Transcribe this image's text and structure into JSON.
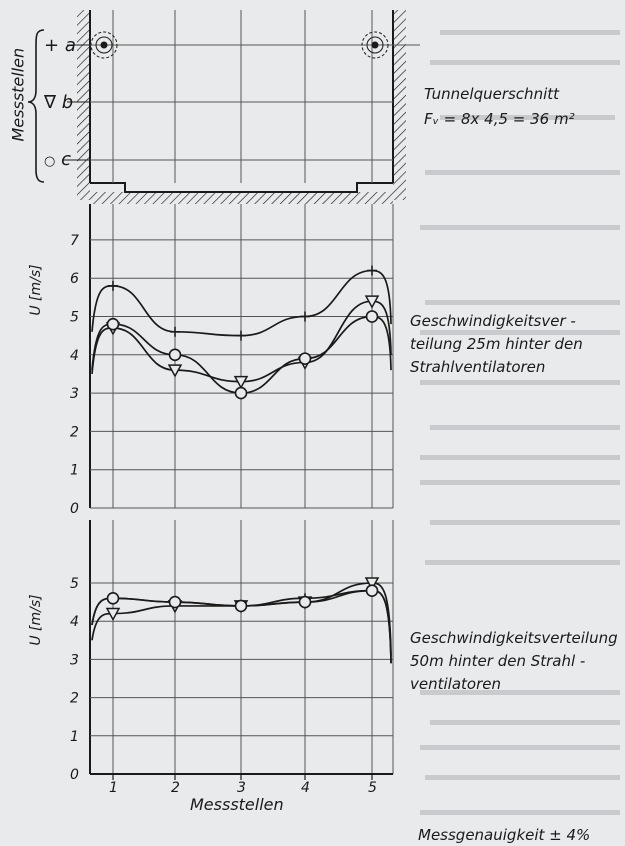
{
  "cross_section": {
    "label_measure_points": "Messstellen",
    "points": [
      {
        "symbol": "+",
        "letter": "a"
      },
      {
        "symbol": "∇",
        "letter": "b"
      },
      {
        "symbol": "○",
        "letter": "c"
      }
    ],
    "title": "Tunnelquerschnitt",
    "formula": "Fᵥ = 8x 4,5 = 36 m²"
  },
  "chart_data": [
    {
      "type": "line",
      "title": "Geschwindigkeitsver - teilung 25m hinter den Strahlventilatoren",
      "title_lines": [
        "Geschwindigkeitsver -",
        "teilung  25m hinter den",
        "Strahlventilatoren"
      ],
      "xlabel": "",
      "ylabel": "U [m/s]",
      "ylim": [
        0,
        7
      ],
      "yticks": [
        0,
        1,
        2,
        3,
        4,
        5,
        6,
        7
      ],
      "x": [
        1,
        2,
        3,
        4,
        5
      ],
      "grid": true,
      "series": [
        {
          "marker": "+",
          "values": [
            5.8,
            4.6,
            4.5,
            5.0,
            6.2
          ]
        },
        {
          "marker": "triangle-down",
          "values": [
            4.7,
            3.6,
            3.3,
            3.8,
            5.4
          ]
        },
        {
          "marker": "circle",
          "values": [
            4.8,
            4.0,
            3.0,
            3.9,
            5.0
          ]
        }
      ]
    },
    {
      "type": "line",
      "title": "Geschwindigkeitsverteilung 50m hinter den Strahlventilatoren",
      "title_lines": [
        "Geschwindigkeitsverteilung",
        "50m hinter den  Strahl -",
        "ventilatoren"
      ],
      "xlabel": "Messstellen",
      "ylabel": "U [m/s]",
      "ylim": [
        0,
        5
      ],
      "yticks": [
        0,
        1,
        2,
        3,
        4,
        5
      ],
      "x": [
        1,
        2,
        3,
        4,
        5
      ],
      "xticks": [
        "1",
        "2",
        "3",
        "4",
        "5"
      ],
      "grid": true,
      "series": [
        {
          "marker": "+",
          "values": [
            4.6,
            4.5,
            4.4,
            4.6,
            4.8
          ]
        },
        {
          "marker": "triangle-down",
          "values": [
            4.2,
            4.4,
            4.4,
            4.5,
            5.0
          ]
        },
        {
          "marker": "circle",
          "values": [
            4.6,
            4.5,
            4.4,
            4.5,
            4.8
          ]
        }
      ]
    }
  ],
  "footer": {
    "accuracy": "Messgenauigkeit  ± 4%"
  }
}
